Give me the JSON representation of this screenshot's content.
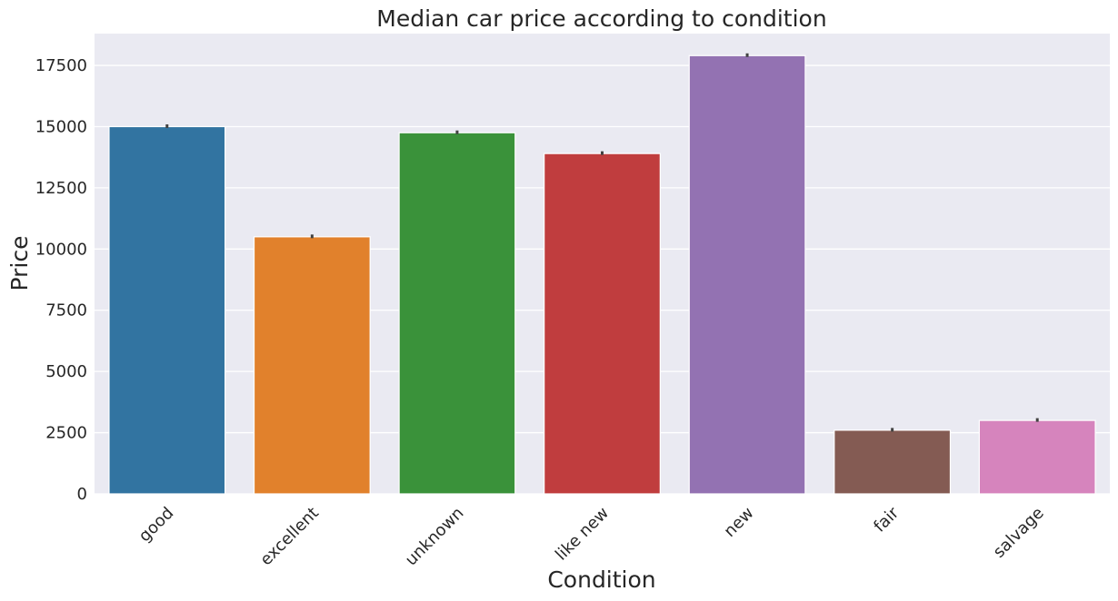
{
  "chart_data": {
    "type": "bar",
    "title": "Median car price according to condition",
    "xlabel": "Condition",
    "ylabel": "Price",
    "categories": [
      "good",
      "excellent",
      "unknown",
      "like new",
      "new",
      "fair",
      "salvage"
    ],
    "values": [
      15000,
      10500,
      14750,
      13900,
      17900,
      2600,
      3000
    ],
    "colors": [
      "#3274a1",
      "#e1812c",
      "#3a923a",
      "#c03d3e",
      "#9372b2",
      "#845b53",
      "#d684bd"
    ],
    "ylim": [
      0,
      18800
    ],
    "yticks": [
      0,
      2500,
      5000,
      7500,
      10000,
      12500,
      15000,
      17500
    ],
    "ytick_labels": [
      "0",
      "2500",
      "5000",
      "7500",
      "10000",
      "12500",
      "15000",
      "17500"
    ],
    "grid": true,
    "background": "#eaeaf2",
    "error_bar_color": "#424242"
  }
}
